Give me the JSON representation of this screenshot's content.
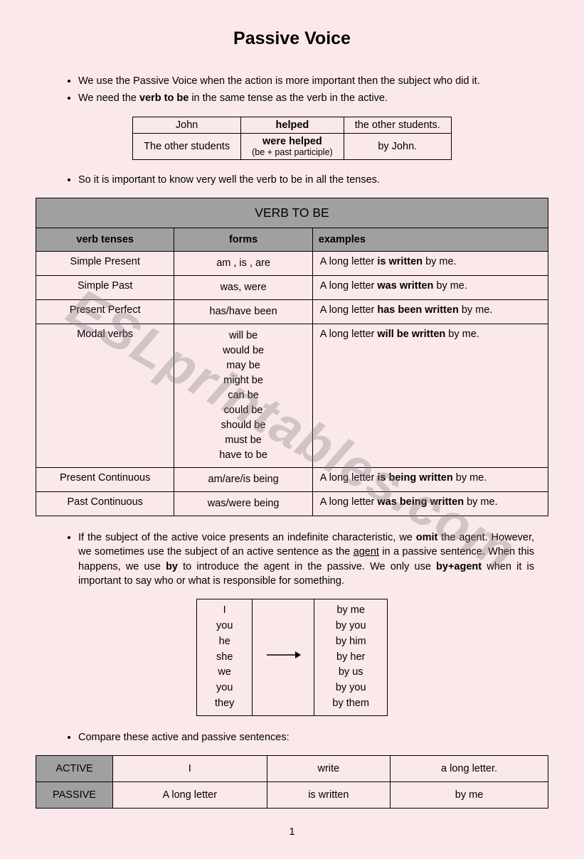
{
  "title": "Passive Voice",
  "bullets_top": [
    "We use the Passive Voice  when the action is more important then the subject who did it.",
    "We need the <b>verb to be</b> in the same tense as the verb in the active."
  ],
  "example_table": {
    "row1": {
      "c1": "John",
      "c2": "<b>helped</b>",
      "c3": "the other students."
    },
    "row2": {
      "c1": "The other students",
      "c2": "<b>were helped</b>",
      "c2_note": "(be + past participle)",
      "c3": "by John."
    }
  },
  "bullet_mid": "So it is important to know very well the verb to be in all the tenses.",
  "verb_table": {
    "main_header": "VERB TO BE",
    "headers": {
      "c1": "verb tenses",
      "c2": "forms",
      "c3": "examples"
    },
    "rows": [
      {
        "tense": "Simple Present",
        "forms": "am , is , are",
        "example": "A long letter <b>is written</b> by me."
      },
      {
        "tense": "Simple Past",
        "forms": "was, were",
        "example": "A long letter <b>was written</b> by me."
      },
      {
        "tense": "Present Perfect",
        "forms": "has/have been",
        "example": "A long letter <b>has been written</b> by me."
      },
      {
        "tense": "Modal verbs",
        "forms": "will be<br>would be<br>may be<br>might be<br>can be<br>could be<br>should be<br>must be<br>have to be",
        "example": "A long letter <b>will be written</b> by me."
      },
      {
        "tense": "Present Continuous",
        "forms": "am/are/is being",
        "example": "A long letter <b>is being written</b> by me."
      },
      {
        "tense": "Past Continuous",
        "forms": "was/were being",
        "example": "A long letter <b>was being written</b> by me."
      }
    ]
  },
  "bullet_agent": "If the subject of the active voice presents an indefinite characteristic, we <b>omit</b> the agent. However, we sometimes use the subject of an active sentence as the <u>agent</u> in a passive sentence. When this happens, we use <b>by</b> to introduce the agent in the passive. We only use <b>by+agent</b> when it is important to say who or what is responsible for something.",
  "pronoun_table": {
    "left": "I<br>you<br>he<br>she<br>we<br>you<br>they",
    "right": "by me<br>by you<br>by him<br>by her<br>by us<br>by you<br>by them"
  },
  "bullet_compare": "Compare these active and passive sentences:",
  "compare_table": {
    "row1": {
      "h": "ACTIVE",
      "c1": "I",
      "c2": "write",
      "c3": "a long letter."
    },
    "row2": {
      "h": "PASSIVE",
      "c1": "A long letter",
      "c2": "is written",
      "c3": "by me"
    }
  },
  "page_number": "1",
  "watermark": "ESLprintables.com",
  "colors": {
    "background": "#fbe8eb",
    "table_header_bg": "#a0a0a0",
    "border": "#000000",
    "watermark": "rgba(130,130,130,0.35)"
  }
}
